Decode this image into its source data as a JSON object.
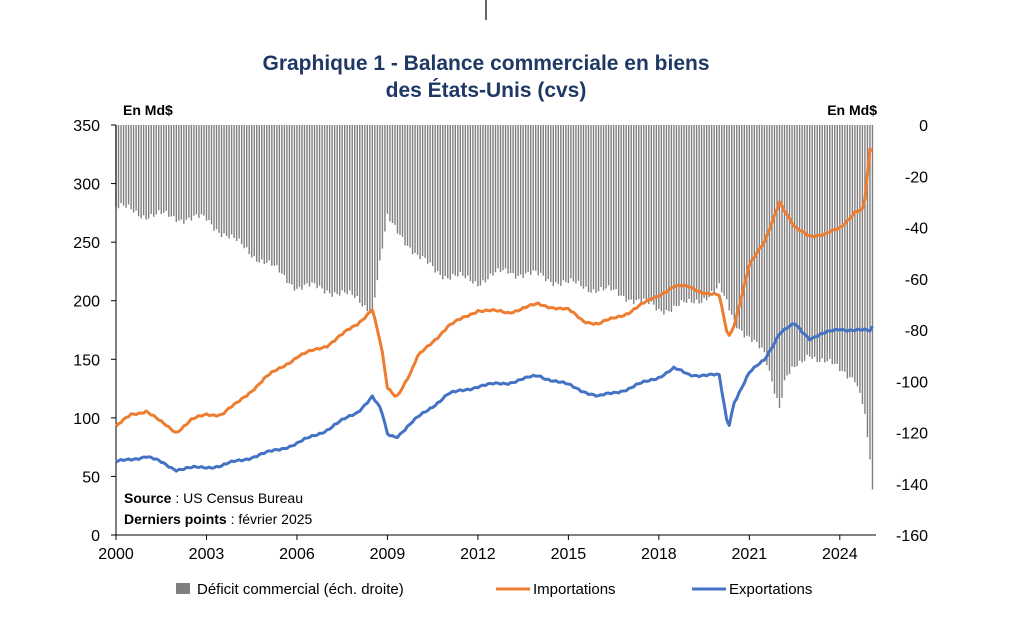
{
  "chart_data": {
    "type": "bar+line",
    "title_line1": "Graphique 1 - Balance commerciale en biens",
    "title_line2": "des États-Unis (cvs)",
    "left_unit": "En Md$",
    "right_unit": "En Md$",
    "left_ylim": [
      0,
      350
    ],
    "left_ticks": [
      "0",
      "50",
      "100",
      "150",
      "200",
      "250",
      "300",
      "350"
    ],
    "right_ylim": [
      -160,
      0
    ],
    "right_ticks": [
      "-160",
      "-140",
      "-120",
      "-100",
      "-80",
      "-60",
      "-40",
      "-20",
      "0"
    ],
    "x_range": [
      2000,
      2025.2
    ],
    "x_ticks": [
      "2000",
      "2003",
      "2006",
      "2009",
      "2012",
      "2015",
      "2018",
      "2021",
      "2024"
    ],
    "source_label": "Source",
    "source_text": " : US Census Bureau",
    "last_points_label": "Derniers points",
    "last_points_text": " : février 2025",
    "colors": {
      "deficit": "#7f7f7f",
      "imports": "#ed7d31",
      "exports": "#4472c4"
    },
    "series": [
      {
        "name": "Déficit commercial (éch. droite)",
        "type": "bar",
        "axis": "right",
        "x": [
          2000,
          2001,
          2002,
          2003,
          2004,
          2005,
          2006,
          2007,
          2008,
          2008.5,
          2009,
          2009.5,
          2010,
          2011,
          2012,
          2013,
          2014,
          2015,
          2016,
          2017,
          2018,
          2019,
          2020,
          2020.5,
          2021,
          2021.5,
          2022,
          2022.2,
          2022.7,
          2023,
          2023.5,
          2024,
          2024.5,
          2024.8,
          2024.9,
          2025.0,
          2025.1
        ],
        "values": [
          -32,
          -35,
          -36,
          -37,
          -46,
          -54,
          -63,
          -64,
          -68,
          -72,
          -37,
          -43,
          -52,
          -59,
          -61,
          -57,
          -59,
          -62,
          -64,
          -67,
          -72,
          -70,
          -64,
          -76,
          -83,
          -90,
          -109,
          -98,
          -94,
          -89,
          -92,
          -96,
          -98,
          -110,
          -122,
          -131,
          -147
        ]
      },
      {
        "name": "Importations",
        "type": "line",
        "axis": "left",
        "x": [
          2000,
          2000.5,
          2001,
          2001.5,
          2002,
          2002.5,
          2003,
          2003.5,
          2004,
          2005,
          2006,
          2007,
          2008,
          2008.5,
          2008.8,
          2009,
          2009.3,
          2009.8,
          2010,
          2011,
          2012,
          2013,
          2014,
          2015,
          2015.5,
          2016,
          2017,
          2018,
          2018.5,
          2019,
          2019.5,
          2020,
          2020.3,
          2020.5,
          2021,
          2021.5,
          2022,
          2022.2,
          2022.5,
          2023,
          2023.5,
          2024,
          2024.5,
          2024.8,
          2025.0,
          2025.1
        ],
        "values": [
          92,
          103,
          106,
          96,
          88,
          98,
          103,
          103,
          112,
          135,
          152,
          162,
          180,
          193,
          160,
          125,
          118,
          140,
          152,
          178,
          192,
          190,
          197,
          192,
          183,
          180,
          190,
          205,
          212,
          212,
          207,
          204,
          168,
          180,
          230,
          250,
          285,
          275,
          262,
          256,
          256,
          262,
          276,
          278,
          328,
          328
        ]
      },
      {
        "name": "Exportations",
        "type": "line",
        "axis": "left",
        "x": [
          2000,
          2000.5,
          2001,
          2001.5,
          2002,
          2002.5,
          2003,
          2003.5,
          2004,
          2005,
          2006,
          2007,
          2008,
          2008.5,
          2008.8,
          2009,
          2009.3,
          2010,
          2011,
          2012,
          2013,
          2014,
          2015,
          2016,
          2017,
          2018,
          2018.5,
          2019,
          2020,
          2020.3,
          2020.5,
          2021,
          2021.5,
          2022,
          2022.5,
          2023,
          2023.5,
          2024,
          2024.5,
          2025.0,
          2025.1
        ],
        "values": [
          62,
          65,
          67,
          62,
          56,
          57,
          58,
          59,
          63,
          70,
          78,
          90,
          105,
          118,
          106,
          86,
          84,
          100,
          120,
          127,
          130,
          136,
          128,
          118,
          125,
          135,
          142,
          137,
          136,
          91,
          114,
          138,
          150,
          172,
          180,
          168,
          172,
          176,
          175,
          174,
          178
        ]
      }
    ],
    "legend": [
      "Déficit commercial (éch. droite)",
      "Importations",
      "Exportations"
    ]
  }
}
